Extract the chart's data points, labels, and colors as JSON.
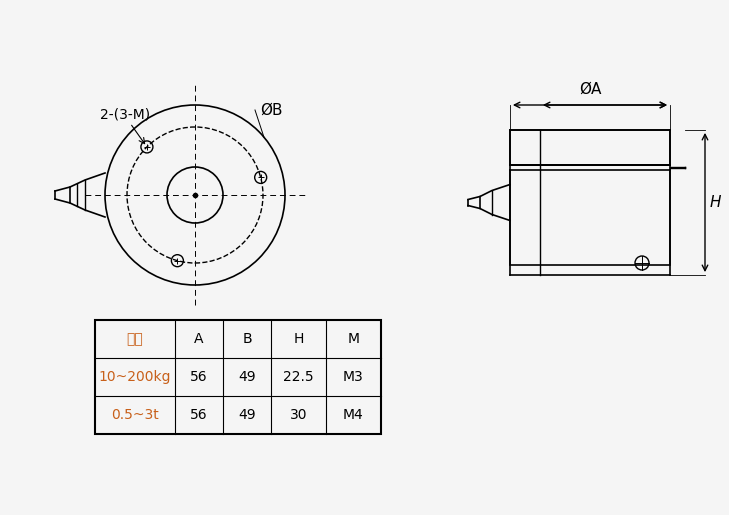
{
  "bg_color": "#f5f5f5",
  "line_color": "#000000",
  "text_color": "#000000",
  "orange_color": "#c8601a",
  "table_headers": [
    "量程",
    "A",
    "B",
    "H",
    "M"
  ],
  "table_rows": [
    [
      "10~200kg",
      "56",
      "49",
      "22.5",
      "M3"
    ],
    [
      "0.5~3t",
      "56",
      "49",
      "30",
      "M4"
    ]
  ],
  "label_phiA": "ØA",
  "label_phiB": "ØB",
  "label_2_3M": "2-(3-M)",
  "label_H": "H"
}
